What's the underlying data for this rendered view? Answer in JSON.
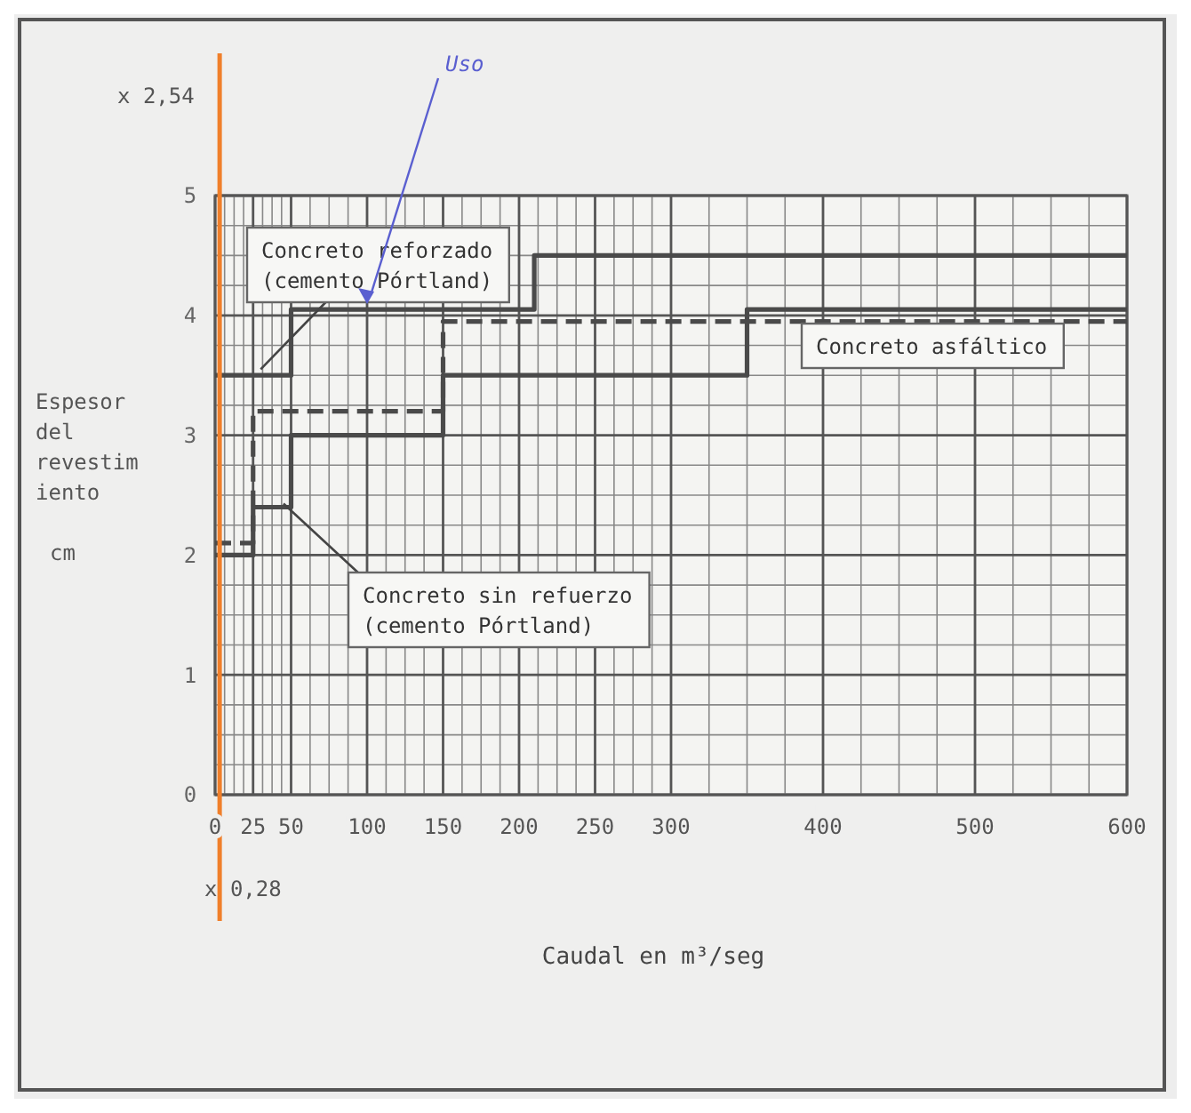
{
  "chart_data": {
    "type": "step",
    "xlabel": "Caudal en m³/seg",
    "ylabel": "Espesor del revestim iento cm",
    "xlim": [
      0,
      600
    ],
    "xticks": [
      0,
      25,
      50,
      100,
      150,
      200,
      250,
      300,
      400,
      500,
      600
    ],
    "ylim": [
      0,
      5
    ],
    "yticks": [
      0,
      1,
      2,
      3,
      4,
      5
    ],
    "grid": true,
    "line_style": "solid",
    "series": [
      {
        "name": "Concreto reforzado (cemento Pórtland)",
        "color": "#4a4a4a",
        "x": [
          0,
          50,
          210,
          600
        ],
        "values": [
          3.5,
          4.05,
          4.5,
          4.5
        ]
      },
      {
        "name": "Concreto asfáltico",
        "color": "#4a4a4a",
        "line_style": "dashed",
        "x": [
          0,
          25,
          150,
          600
        ],
        "values": [
          2.1,
          3.2,
          3.95,
          3.95
        ]
      },
      {
        "name": "Concreto sin refuerzo (cemento Pórtland)",
        "color": "#4a4a4a",
        "x": [
          0,
          25,
          50,
          150,
          350,
          600
        ],
        "values": [
          2,
          2.4,
          3,
          3.5,
          4.05,
          4.05
        ]
      }
    ],
    "ref_lines": [
      {
        "axis": "x",
        "value": 3,
        "color": "#f07f2a"
      }
    ],
    "annotations": [
      "x 2,54",
      "x 0,28",
      {
        "text": "Uso",
        "x": 100,
        "y": 4.05
      }
    ]
  }
}
